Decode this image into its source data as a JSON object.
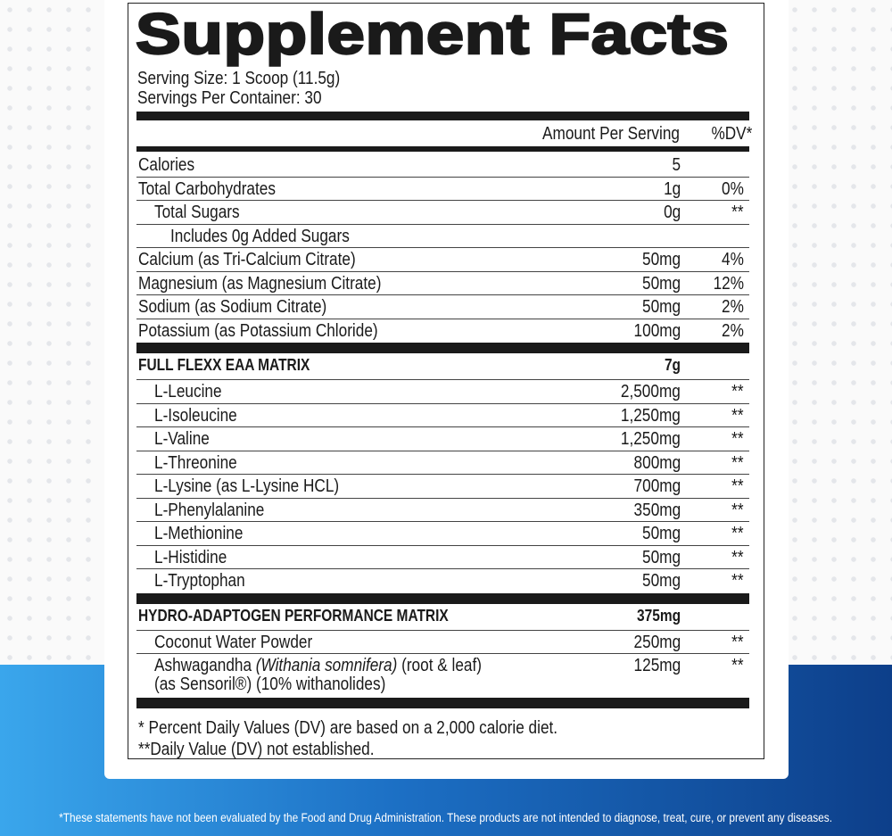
{
  "title": "Supplement Facts",
  "serving_size": "Serving Size: 1 Scoop (11.5g)",
  "servings_per_container": "Servings Per Container: 30",
  "header": {
    "amount": "Amount Per Serving",
    "dv": "%DV*"
  },
  "rows": [
    {
      "name": "Calories",
      "amount": "5",
      "dv": "",
      "style": "normal"
    },
    {
      "name": "Total Carbohydrates",
      "amount": "1g",
      "dv": "0%",
      "style": "normal"
    },
    {
      "name": "Total Sugars",
      "amount": "0g",
      "dv": "**",
      "style": "ind1"
    },
    {
      "name": "Includes 0g Added Sugars",
      "amount": "",
      "dv": "",
      "style": "ind2"
    },
    {
      "name": "Calcium (as Tri-Calcium Citrate)",
      "amount": "50mg",
      "dv": "4%",
      "style": "normal"
    },
    {
      "name": "Magnesium (as Magnesium Citrate)",
      "amount": "50mg",
      "dv": "12%",
      "style": "normal"
    },
    {
      "name": "Sodium (as Sodium Citrate)",
      "amount": "50mg",
      "dv": "2%",
      "style": "normal"
    },
    {
      "name": "Potassium (as Potassium Chloride)",
      "amount": "100mg",
      "dv": "2%",
      "style": "normal",
      "sep": true
    },
    {
      "name": "FULL FLEXX EAA MATRIX",
      "amount": "7g",
      "dv": "",
      "style": "bold"
    },
    {
      "name": "L-Leucine",
      "amount": "2,500mg",
      "dv": "**",
      "style": "ind1"
    },
    {
      "name": "L-Isoleucine",
      "amount": "1,250mg",
      "dv": "**",
      "style": "ind1"
    },
    {
      "name": "L-Valine",
      "amount": "1,250mg",
      "dv": "**",
      "style": "ind1"
    },
    {
      "name": "L-Threonine",
      "amount": "800mg",
      "dv": "**",
      "style": "ind1"
    },
    {
      "name": "L-Lysine (as L-Lysine HCL)",
      "amount": "700mg",
      "dv": "**",
      "style": "ind1"
    },
    {
      "name": "L-Phenylalanine",
      "amount": "350mg",
      "dv": "**",
      "style": "ind1"
    },
    {
      "name": "L-Methionine",
      "amount": "50mg",
      "dv": "**",
      "style": "ind1"
    },
    {
      "name": "L-Histidine",
      "amount": "50mg",
      "dv": "**",
      "style": "ind1"
    },
    {
      "name": "L-Tryptophan",
      "amount": "50mg",
      "dv": "**",
      "style": "ind1",
      "sep": true
    },
    {
      "name": "HYDRO-ADAPTOGEN PERFORMANCE MATRIX",
      "amount": "375mg",
      "dv": "",
      "style": "bold"
    },
    {
      "name": "Coconut Water Powder",
      "amount": "250mg",
      "dv": "**",
      "style": "ind1"
    }
  ],
  "ashwagandha": {
    "name_prefix": "Ashwagandha ",
    "name_italic": "(Withania somnifera)",
    "name_suffix": " (root & leaf)",
    "line2": "(as Sensoril®)  (10% withanolides)",
    "amount": "125mg",
    "dv": "**"
  },
  "footnotes": [
    "* Percent Daily Values (DV) are based on a 2,000 calorie diet.",
    "**Daily Value (DV) not established."
  ],
  "disclaimer": "*These statements have not been evaluated by the Food and Drug Administration. These products are not intended to diagnose, treat, cure, or prevent any diseases.",
  "colors": {
    "gradient_start": "#3aa6ec",
    "gradient_end": "#0d3f8a",
    "ink": "#1a1a1a"
  }
}
